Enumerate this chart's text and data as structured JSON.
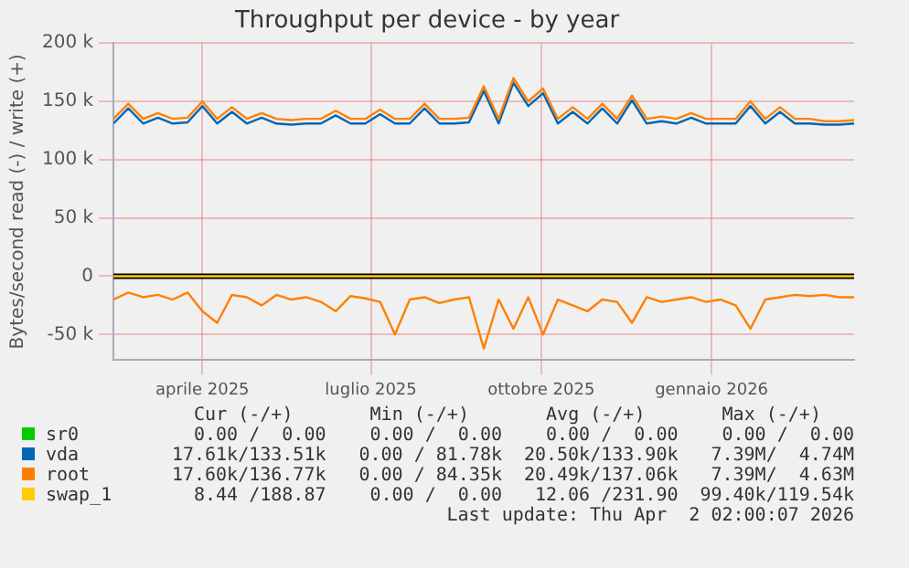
{
  "chart_data": {
    "type": "line",
    "title": "Throughput per device - by year",
    "ylabel": "Bytes/second read (-) / write (+)",
    "x": [
      "2025-02-26",
      "2025-03-06",
      "2025-03-14",
      "2025-03-22",
      "2025-03-30",
      "2025-04-07",
      "2025-04-15",
      "2025-04-23",
      "2025-05-01",
      "2025-05-09",
      "2025-05-17",
      "2025-05-25",
      "2025-06-02",
      "2025-06-10",
      "2025-06-18",
      "2025-06-26",
      "2025-07-04",
      "2025-07-12",
      "2025-07-20",
      "2025-07-28",
      "2025-08-05",
      "2025-08-13",
      "2025-08-21",
      "2025-08-29",
      "2025-09-06",
      "2025-09-14",
      "2025-09-22",
      "2025-09-30",
      "2025-10-08",
      "2025-10-16",
      "2025-10-24",
      "2025-11-01",
      "2025-11-09",
      "2025-11-17",
      "2025-11-25",
      "2025-12-03",
      "2025-12-11",
      "2025-12-19",
      "2025-12-27",
      "2026-01-04",
      "2026-01-12",
      "2026-01-20",
      "2026-01-28",
      "2026-02-05",
      "2026-02-13",
      "2026-02-21",
      "2026-03-01",
      "2026-03-09",
      "2026-03-17",
      "2026-03-25",
      "2026-04-02"
    ],
    "series": [
      {
        "name": "sr0",
        "color": "#00cc00",
        "values": [
          null,
          null,
          null,
          null,
          null,
          null,
          null,
          null,
          null,
          null,
          null,
          null,
          null,
          null,
          null,
          null,
          null,
          null,
          null,
          null,
          null,
          null,
          null,
          null,
          null,
          null,
          null,
          null,
          null,
          null,
          null,
          null,
          null,
          null,
          null,
          null,
          null,
          null,
          null,
          null,
          null,
          null,
          null,
          null,
          null,
          null,
          null,
          null,
          null,
          null,
          null
        ]
      },
      {
        "name": "vda",
        "color": "#0066b3",
        "values": [
          131000,
          144000,
          131000,
          136000,
          131000,
          132000,
          146000,
          131000,
          141000,
          131000,
          136000,
          131000,
          130000,
          131000,
          131000,
          138000,
          131000,
          131000,
          139000,
          131000,
          131000,
          144000,
          131000,
          131000,
          132000,
          159000,
          131000,
          166000,
          146000,
          157000,
          131000,
          141000,
          131000,
          144000,
          131000,
          151000,
          131000,
          133000,
          131000,
          136000,
          131000,
          131000,
          131000,
          146000,
          131000,
          141000,
          131000,
          131000,
          130000,
          130000,
          131000
        ]
      },
      {
        "name": "root",
        "color": "#ff8000",
        "values": [
          135000,
          148000,
          135000,
          140000,
          135000,
          136000,
          150000,
          135000,
          145000,
          135000,
          140000,
          135000,
          134000,
          135000,
          135000,
          142000,
          135000,
          135000,
          143000,
          135000,
          135000,
          148000,
          135000,
          135000,
          136000,
          163000,
          135000,
          170000,
          150000,
          161000,
          135000,
          145000,
          135000,
          148000,
          135000,
          155000,
          135000,
          137000,
          135000,
          140000,
          135000,
          135000,
          135000,
          150000,
          135000,
          145000,
          135000,
          135000,
          133000,
          133000,
          134000
        ]
      },
      {
        "name": "swap_1",
        "color": "#ffcc00",
        "values": [
          0,
          0,
          0,
          0,
          0,
          0,
          0,
          0,
          0,
          0,
          0,
          0,
          0,
          0,
          0,
          0,
          0,
          0,
          0,
          0,
          0,
          0,
          0,
          0,
          0,
          0,
          0,
          0,
          0,
          0,
          0,
          0,
          0,
          0,
          0,
          0,
          0,
          0,
          0,
          0,
          0,
          0,
          0,
          0,
          0,
          0,
          0,
          0,
          0,
          0,
          0
        ]
      },
      {
        "color": "#ff8000",
        "values": [
          -20000,
          -14000,
          -18000,
          -16000,
          -20000,
          -14000,
          -30000,
          -40000,
          -16000,
          -18000,
          -25000,
          -16000,
          -20000,
          -18000,
          -22000,
          -30000,
          -17000,
          -19000,
          -22000,
          -50000,
          -20000,
          -18000,
          -23000,
          -20000,
          -18000,
          -62000,
          -20000,
          -45000,
          -18000,
          -50000,
          -20000,
          -25000,
          -30000,
          -20000,
          -22000,
          -40000,
          -18000,
          -22000,
          -20000,
          -18000,
          -22000,
          -20000,
          -25000,
          -45000,
          -20000,
          -18000,
          -16000,
          -17000,
          -16000,
          -18000,
          -18000
        ]
      }
    ],
    "xlim": [
      "2025-02-26",
      "2026-04-02"
    ],
    "xticks": [
      {
        "value": "2025-04-15",
        "label": "aprile 2025"
      },
      {
        "value": "2025-07-15",
        "label": "luglio 2025"
      },
      {
        "value": "2025-10-15",
        "label": "ottobre 2025"
      },
      {
        "value": "2026-01-15",
        "label": "gennaio 2026"
      }
    ],
    "ylim": [
      -72000,
      200000
    ],
    "yticks": [
      {
        "value": -50000,
        "label": "-50 k"
      },
      0,
      {
        "value": 50000,
        "label": "50 k"
      },
      {
        "value": 100000,
        "label": "100 k"
      },
      {
        "value": 150000,
        "label": "150 k"
      },
      {
        "value": 200000,
        "label": "200 k"
      }
    ],
    "ref_lines": [
      {
        "axis": "y",
        "value": 0,
        "color": "#000000"
      }
    ],
    "grid": true,
    "legend": "bottom",
    "marker": "none",
    "line_style": "solid",
    "annotations": [
      "Cur (-/+)",
      "Min (-/+)",
      "Avg (-/+)",
      "Max (-/+)",
      "0.00 /  0.00",
      "0.00 /  0.00",
      "0.00 /  0.00",
      "0.00 /  0.00",
      "17.61k/133.51k",
      "0.00 / 81.78k",
      "20.50k/133.90k",
      "7.39M/  4.74M",
      "17.60k/136.77k",
      "0.00 / 84.35k",
      "20.49k/137.06k",
      "7.39M/  4.63M",
      "8.44 /188.87",
      "0.00 /  0.00",
      "12.06 /231.90",
      "99.40k/119.54k",
      "Last update: Thu Apr  2 02:00:07 2026"
    ]
  }
}
